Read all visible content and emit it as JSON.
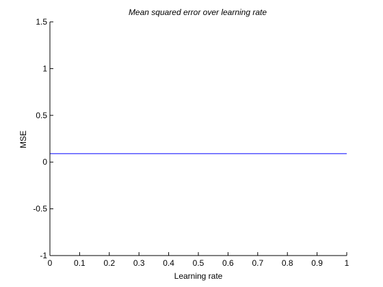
{
  "chart_data": {
    "type": "line",
    "title": "Mean squared error over learning rate",
    "xlabel": "Learning rate",
    "ylabel": "MSE",
    "xlim": [
      0,
      1
    ],
    "ylim": [
      -1,
      1.5
    ],
    "x_ticks": [
      0,
      0.1,
      0.2,
      0.3,
      0.4,
      0.5,
      0.6,
      0.7,
      0.8,
      0.9,
      1
    ],
    "x_tick_labels": [
      "0",
      "0.1",
      "0.2",
      "0.3",
      "0.4",
      "0.5",
      "0.6",
      "0.7",
      "0.8",
      "0.9",
      "1"
    ],
    "y_ticks": [
      -1,
      -0.5,
      0,
      0.5,
      1,
      1.5
    ],
    "y_tick_labels": [
      "-1",
      "-0.5",
      "0",
      "0.5",
      "1",
      "1.5"
    ],
    "grid": false,
    "series": [
      {
        "color": "#0000ff",
        "x": [
          0,
          1
        ],
        "y": [
          0.09,
          0.09
        ]
      }
    ]
  }
}
